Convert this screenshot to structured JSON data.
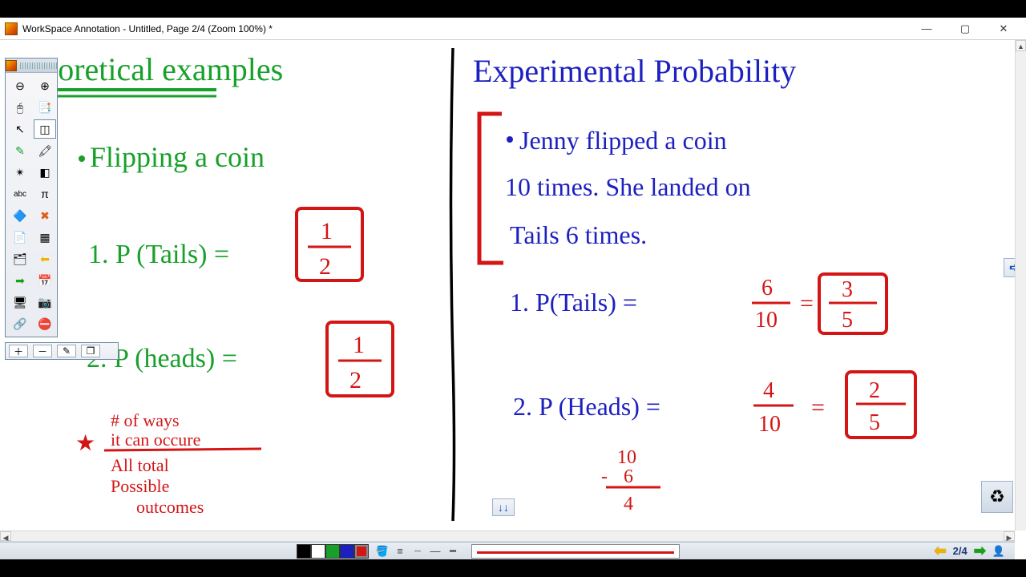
{
  "window": {
    "title": "WorkSpace Annotation - Untitled, Page 2/4  (Zoom 100%) *",
    "min_glyph": "—",
    "max_glyph": "▢",
    "close_glyph": "✕"
  },
  "colors": {
    "green": "#17a02a",
    "blue": "#1d20c0",
    "red": "#d41515",
    "black": "#000000",
    "white": "#ffffff",
    "titlebar_text": "#000000"
  },
  "left_panel": {
    "heading": "Theoretical  examples",
    "example": "Flipping  a  coin",
    "q1_label": "1.  P (Tails) =",
    "q1_frac_top": "1",
    "q1_frac_bot": "2",
    "q2_label": "2. P (heads) =",
    "q2_frac_top": "1",
    "q2_frac_bot": "2",
    "note_line1": "# of ways",
    "note_line2": "it can occure",
    "note_line3": "All total",
    "note_line4": "Possible",
    "note_line5": "outcomes"
  },
  "right_panel": {
    "heading": "Experimental  Probability",
    "story_l1": "Jenny  flipped  a  coin",
    "story_l2": "10 times. She  landed  on",
    "story_l3": "Tails  6  times.",
    "q1_label": "1.  P(Tails) =",
    "q1_frac1_top": "6",
    "q1_frac1_bot": "10",
    "q1_eq": "=",
    "q1_frac2_top": "3",
    "q1_frac2_bot": "5",
    "q2_label": "2. P (Heads) =",
    "q2_frac1_top": "4",
    "q2_frac1_bot": "10",
    "q2_eq": "=",
    "q2_frac2_top": "2",
    "q2_frac2_bot": "5",
    "sub_top": "10",
    "sub_mid": "6",
    "sub_bot": "4",
    "sub_minus": "-"
  },
  "tools": [
    {
      "name": "collapse-icon",
      "glyph": "⊖"
    },
    {
      "name": "expand-icon",
      "glyph": "⊕"
    },
    {
      "name": "mouse-icon",
      "glyph": "🖰"
    },
    {
      "name": "copy-icon",
      "glyph": "📑"
    },
    {
      "name": "pointer-icon",
      "glyph": "↖"
    },
    {
      "name": "select-rect-icon",
      "glyph": "◫",
      "selected": true
    },
    {
      "name": "pencil-icon",
      "glyph": "✎"
    },
    {
      "name": "highlighter-icon",
      "glyph": "🖍"
    },
    {
      "name": "stamp-icon",
      "glyph": "✴"
    },
    {
      "name": "eraser-icon",
      "glyph": "◧"
    },
    {
      "name": "text-abc-icon",
      "glyph": "abc"
    },
    {
      "name": "math-pi-icon",
      "glyph": "π"
    },
    {
      "name": "shapes-icon",
      "glyph": "🔷"
    },
    {
      "name": "delete-x-icon",
      "glyph": "✖"
    },
    {
      "name": "new-page-icon",
      "glyph": "📄"
    },
    {
      "name": "grid-icon",
      "glyph": "▦"
    },
    {
      "name": "layers-icon",
      "glyph": "🗂"
    },
    {
      "name": "arrow-left-icon",
      "glyph": "⬅"
    },
    {
      "name": "arrow-right-icon",
      "glyph": "➡"
    },
    {
      "name": "calendar-icon",
      "glyph": "📅"
    },
    {
      "name": "screen-icon",
      "glyph": "🖥"
    },
    {
      "name": "camera-icon",
      "glyph": "📷"
    },
    {
      "name": "link-icon",
      "glyph": "🔗"
    },
    {
      "name": "cancel-icon",
      "glyph": "⛔"
    }
  ],
  "mini_toolbar": {
    "add": "＋",
    "remove": "－",
    "edit": "✎",
    "pages": "❐"
  },
  "bottombar": {
    "swatches": [
      {
        "name": "black",
        "hex": "#000000"
      },
      {
        "name": "white",
        "hex": "#ffffff"
      },
      {
        "name": "green",
        "hex": "#17a02a"
      },
      {
        "name": "blue",
        "hex": "#1d20c0"
      },
      {
        "name": "red",
        "hex": "#d41515",
        "selected": true
      }
    ],
    "icons": [
      {
        "name": "fill-icon",
        "glyph": "🪣"
      },
      {
        "name": "line-solid-icon",
        "glyph": "≡"
      },
      {
        "name": "line-dash-icon",
        "glyph": "┈"
      },
      {
        "name": "line-small-icon",
        "glyph": "―"
      },
      {
        "name": "line-med-icon",
        "glyph": "━"
      }
    ],
    "current_color": "#d41515",
    "page_label": "2/4",
    "prev_glyph": "⬅",
    "next_glyph": "➡",
    "person_glyph": "👤"
  },
  "nav": {
    "right_glyph": "➪",
    "down_glyph": "↓↓",
    "trash_glyph": "♻"
  }
}
